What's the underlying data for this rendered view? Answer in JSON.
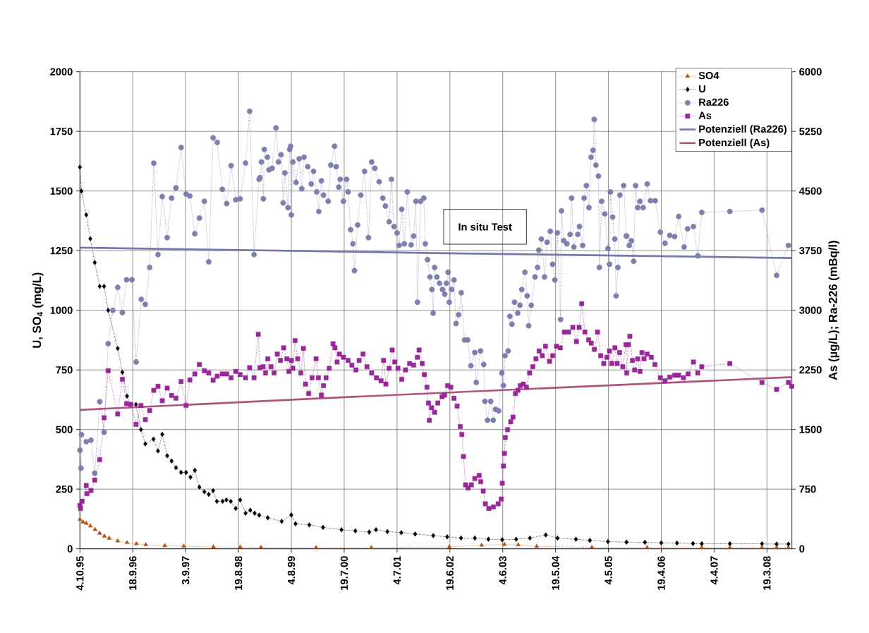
{
  "chart_data": {
    "type": "line",
    "ylabel": "U, SO$_{4}$ (mg/L)",
    "y2label": "As (µg/L); Ra-226 (mBq/l)",
    "annotations": [
      "In situ Test"
    ],
    "xlim": [
      "1995-10-04",
      "2008-08-31"
    ],
    "xticks": [
      {
        "value": "1995-10-04",
        "label": "4.10.95"
      },
      {
        "value": "1996-09-18",
        "label": "18.9.96"
      },
      {
        "value": "1997-09-03",
        "label": "3.9.97"
      },
      {
        "value": "1998-08-19",
        "label": "19.8.98"
      },
      {
        "value": "1999-08-04",
        "label": "4.8.99"
      },
      {
        "value": "2000-07-19",
        "label": "19.7.00"
      },
      {
        "value": "2001-07-04",
        "label": "4.7.01"
      },
      {
        "value": "2002-06-19",
        "label": "19.6.02"
      },
      {
        "value": "2003-06-04",
        "label": "4.6.03"
      },
      {
        "value": "2004-05-19",
        "label": "19.5.04"
      },
      {
        "value": "2005-05-04",
        "label": "4.5.05"
      },
      {
        "value": "2006-04-19",
        "label": "19.4.06"
      },
      {
        "value": "2007-04-04",
        "label": "4.4.07"
      },
      {
        "value": "2008-03-19",
        "label": "19.3.08"
      }
    ],
    "ylim": [
      0,
      2000
    ],
    "yticks": [
      0,
      250,
      500,
      750,
      1000,
      1250,
      1500,
      1750,
      2000
    ],
    "y2lim": [
      0,
      6000
    ],
    "y2ticks": [
      0,
      750,
      1500,
      2250,
      3000,
      3750,
      4500,
      5250,
      6000
    ],
    "grid": true,
    "legend": "top right",
    "series": [
      {
        "name": "SO4",
        "type": "line",
        "color": "#b5520f",
        "marker": "triangle",
        "line_style": "dotted",
        "x": [
          "1995-10-04",
          "1995-10-25",
          "1995-11-15",
          "1995-12-12",
          "1996-01-12",
          "1996-02-12",
          "1996-03-14",
          "1996-04-15",
          "1996-06-10",
          "1996-08-11",
          "1996-10-12",
          "1996-12-13",
          "1997-04-18",
          "1997-08-21",
          "1998-03-06",
          "1998-08-30",
          "1999-01-15",
          "2000-01-15",
          "2001-01-15",
          "2002-06-15",
          "2003-01-15",
          "2003-06-15",
          "2003-09-15",
          "2004-01-15",
          "2005-01-15",
          "2006-01-15",
          "2007-01-12",
          "2007-07-17",
          "2008-02-15",
          "2008-05-22",
          "2008-08-08"
        ],
        "values": [
          123,
          112,
          107,
          96,
          81,
          65,
          53,
          44,
          33,
          26,
          21,
          17,
          13,
          11,
          8,
          7,
          6,
          5,
          5,
          8,
          15,
          18,
          17,
          10,
          6,
          5,
          5,
          5,
          5,
          5,
          5
        ]
      },
      {
        "name": "U",
        "type": "line",
        "color": "#000000",
        "marker": "diamond",
        "line_style": "dotted",
        "x": [
          "1995-10-04",
          "1995-10-14",
          "1995-11-15",
          "1995-12-12",
          "1996-01-10",
          "1996-02-12",
          "1996-03-12",
          "1996-04-08",
          "1996-06-10",
          "1996-07-11",
          "1996-08-11",
          "1996-09-05",
          "1996-10-09",
          "1996-11-11",
          "1996-12-10",
          "1997-02-02",
          "1997-03-04",
          "1997-04-01",
          "1997-05-04",
          "1997-06-02",
          "1997-07-01",
          "1997-08-04",
          "1997-09-06",
          "1997-10-05",
          "1997-11-03",
          "1997-12-03",
          "1998-01-05",
          "1998-02-03",
          "1998-03-04",
          "1998-03-29",
          "1998-05-06",
          "1998-05-31",
          "1998-06-29",
          "1998-08-01",
          "1998-08-30",
          "1998-10-05",
          "1998-11-05",
          "1998-12-04",
          "1999-01-03",
          "1999-03-01",
          "1999-06-01",
          "1999-08-04",
          "1999-09-01",
          "1999-12-01",
          "2000-03-01",
          "2000-07-01",
          "2000-10-01",
          "2001-01-01",
          "2001-02-15",
          "2001-05-01",
          "2001-08-01",
          "2001-11-01",
          "2002-03-01",
          "2002-06-01",
          "2002-09-01",
          "2002-12-01",
          "2003-03-01",
          "2003-06-01",
          "2003-09-01",
          "2003-12-01",
          "2004-03-15",
          "2004-06-01",
          "2004-10-01",
          "2005-01-01",
          "2005-05-01",
          "2005-09-01",
          "2006-01-01",
          "2006-04-19",
          "2006-08-01",
          "2006-11-15",
          "2007-01-12",
          "2007-07-17",
          "2008-02-15",
          "2008-05-22",
          "2008-08-08"
        ],
        "values": [
          1600,
          1500,
          1400,
          1300,
          1200,
          1100,
          1100,
          1000,
          840,
          740,
          640,
          605,
          605,
          500,
          440,
          460,
          410,
          480,
          390,
          368,
          340,
          320,
          320,
          300,
          329,
          259,
          239,
          228,
          244,
          199,
          199,
          205,
          199,
          169,
          205,
          149,
          162,
          149,
          141,
          130,
          115,
          142,
          105,
          100,
          90,
          80,
          75,
          70,
          80,
          72,
          68,
          62,
          55,
          50,
          45,
          45,
          40,
          38,
          40,
          45,
          58,
          45,
          40,
          35,
          30,
          28,
          27,
          25,
          24,
          22,
          21,
          21,
          21,
          20,
          20
        ]
      },
      {
        "name": "Ra226",
        "type": "line",
        "axis": "y2",
        "color": "#7f7fae",
        "marker": "circle",
        "line_style": "dotted",
        "x": [
          "1995-10-04",
          "1995-10-11",
          "1995-10-14",
          "1995-11-15",
          "1995-12-16",
          "1996-01-10",
          "1996-02-12",
          "1996-03-12",
          "1996-04-08",
          "1996-05-09",
          "1996-06-10",
          "1996-07-11",
          "1996-08-08",
          "1996-09-12",
          "1996-10-10",
          "1996-11-13",
          "1996-12-10",
          "1997-01-08",
          "1997-02-04",
          "1997-03-04",
          "1997-04-01",
          "1997-05-04",
          "1997-06-02",
          "1997-07-01",
          "1997-08-04",
          "1997-09-06",
          "1997-10-01",
          "1997-11-03",
          "1997-12-03",
          "1998-01-05",
          "1998-02-03",
          "1998-03-04",
          "1998-03-31",
          "1998-05-04",
          "1998-06-02",
          "1998-07-01",
          "1998-08-01",
          "1998-08-30",
          "1998-10-05",
          "1998-11-01",
          "1998-11-30",
          "1999-01-03",
          "1999-01-08",
          "1999-01-18",
          "1999-01-31",
          "1999-02-06",
          "1999-02-27",
          "1999-03-09",
          "1999-03-30",
          "1999-04-24",
          "1999-05-11",
          "1999-05-28",
          "1999-06-11",
          "1999-06-22",
          "1999-07-13",
          "1999-07-24",
          "1999-07-30",
          "1999-08-04",
          "1999-08-14",
          "1999-09-04",
          "1999-09-25",
          "1999-10-12",
          "1999-10-27",
          "1999-11-21",
          "1999-12-14",
          "1999-12-29",
          "2000-01-19",
          "2000-02-02",
          "2000-02-19",
          "2000-03-04",
          "2000-04-04",
          "2000-04-21",
          "2000-05-16",
          "2000-05-27",
          "2000-06-13",
          "2000-06-23",
          "2000-07-14",
          "2000-08-04",
          "2000-08-14",
          "2000-08-31",
          "2000-09-15",
          "2000-09-25",
          "2000-10-16",
          "2000-11-06",
          "2000-12-01",
          "2000-12-27",
          "2001-01-17",
          "2001-02-07",
          "2001-03-08",
          "2001-04-01",
          "2001-04-18",
          "2001-05-13",
          "2001-05-28",
          "2001-06-14",
          "2001-07-04",
          "2001-07-18",
          "2001-08-04",
          "2001-08-21",
          "2001-09-10",
          "2001-10-05",
          "2001-10-22",
          "2001-11-06",
          "2001-11-16",
          "2001-12-07",
          "2001-12-28",
          "2002-01-07",
          "2002-01-22",
          "2002-02-07",
          "2002-02-20",
          "2002-02-28",
          "2002-03-10",
          "2002-03-25",
          "2002-04-11",
          "2002-05-01",
          "2002-05-16",
          "2002-05-27",
          "2002-06-07",
          "2002-06-15",
          "2002-07-01",
          "2002-07-16",
          "2002-07-30",
          "2002-08-16",
          "2002-09-02",
          "2002-09-24",
          "2002-10-15",
          "2002-11-05",
          "2002-12-01",
          "2002-12-11",
          "2003-01-08",
          "2003-01-29",
          "2003-02-06",
          "2003-02-23",
          "2003-03-16",
          "2003-04-02",
          "2003-04-17",
          "2003-05-08",
          "2003-05-29",
          "2003-06-09",
          "2003-06-19",
          "2003-07-10",
          "2003-07-21",
          "2003-08-04",
          "2003-08-21",
          "2003-09-11",
          "2003-09-26",
          "2003-10-08",
          "2003-10-29",
          "2003-11-13",
          "2003-11-23",
          "2003-12-10",
          "2004-01-04",
          "2004-01-21",
          "2004-01-29",
          "2004-02-15",
          "2004-03-07",
          "2004-03-24",
          "2004-04-14",
          "2004-04-29",
          "2004-05-14",
          "2004-05-31",
          "2004-06-21",
          "2004-06-27",
          "2004-07-12",
          "2004-08-02",
          "2004-08-23",
          "2004-09-02",
          "2004-09-17",
          "2004-10-13",
          "2004-10-24",
          "2004-11-14",
          "2004-11-24",
          "2004-12-09",
          "2004-12-26",
          "2005-01-09",
          "2005-01-22",
          "2005-01-30",
          "2005-02-10",
          "2005-02-27",
          "2005-03-05",
          "2005-03-20",
          "2005-04-10",
          "2005-05-01",
          "2005-05-11",
          "2005-05-17",
          "2005-06-01",
          "2005-06-15",
          "2005-06-24",
          "2005-07-06",
          "2005-07-19",
          "2005-08-13",
          "2005-08-30",
          "2005-09-02",
          "2005-09-19",
          "2005-10-03",
          "2005-10-18",
          "2005-10-31",
          "2005-11-14",
          "2005-11-29",
          "2005-12-20",
          "2006-01-16",
          "2006-02-06",
          "2006-03-10",
          "2006-04-13",
          "2006-05-14",
          "2006-06-14",
          "2006-07-16",
          "2006-08-12",
          "2006-09-17",
          "2006-10-10",
          "2006-11-18",
          "2006-12-17",
          "2007-01-12",
          "2007-07-17",
          "2008-02-15",
          "2008-05-22",
          "2008-08-08"
        ],
        "values": [
          1240,
          1014,
          1438,
          1347,
          1367,
          951,
          1850,
          1466,
          2579,
          2999,
          3288,
          2971,
          3384,
          3384,
          2349,
          3138,
          3074,
          3538,
          4850,
          3700,
          4430,
          3914,
          4410,
          4540,
          5048,
          4461,
          4437,
          3962,
          4160,
          4370,
          3609,
          5170,
          5111,
          4521,
          4342,
          4818,
          4390,
          4402,
          4853,
          5503,
          3700,
          4647,
          4667,
          4865,
          4402,
          5024,
          4925,
          4766,
          4786,
          5293,
          4865,
          4957,
          4350,
          4727,
          4291,
          5024,
          5063,
          4200,
          4865,
          4608,
          4905,
          4529,
          4925,
          4806,
          4588,
          4747,
          4489,
          4243,
          4628,
          4449,
          4370,
          4826,
          5063,
          4806,
          4548,
          4647,
          4370,
          4647,
          4489,
          4013,
          3835,
          3498,
          4073,
          4449,
          4747,
          3914,
          4865,
          4786,
          4616,
          4410,
          4311,
          4113,
          4647,
          4053,
          3974,
          3815,
          4271,
          3835,
          4489,
          3823,
          3934,
          4370,
          3102,
          4370,
          4410,
          3835,
          3637,
          3419,
          3261,
          2964,
          3538,
          3419,
          3340,
          3261,
          3201,
          3340,
          3479,
          3102,
          3261,
          3380,
          2833,
          2944,
          3221,
          2627,
          2627,
          2302,
          2468,
          2092,
          2488,
          2318,
          1854,
          1617,
          1854,
          1617,
          1755,
          1735,
          2211,
          2053,
          2429,
          2488,
          2924,
          2825,
          3102,
          2964,
          3063,
          3261,
          3479,
          3182,
          2805,
          3063,
          3419,
          3538,
          3756,
          3895,
          3419,
          3855,
          3994,
          3578,
          3380,
          3974,
          2884,
          4251,
          3875,
          3835,
          3954,
          4410,
          3796,
          3954,
          4053,
          3815,
          4410,
          4568,
          4291,
          4925,
          5012,
          5400,
          4826,
          4687,
          3538,
          4370,
          4212,
          3776,
          3578,
          4489,
          4172,
          3895,
          3182,
          3538,
          4449,
          4568,
          3934,
          3934,
          3815,
          3875,
          3617,
          4568,
          4291,
          4370,
          4291,
          4588,
          4378,
          4378,
          3982,
          3843,
          3942,
          3926,
          4180,
          3796,
          4025,
          4053,
          3685,
          4231,
          4243,
          4259,
          3439,
          3815
        ]
      },
      {
        "name": "As",
        "type": "line",
        "axis": "y2",
        "color": "#982898",
        "marker": "square",
        "line_style": "dotted",
        "x": [
          "1995-10-04",
          "1995-10-08",
          "1995-10-18",
          "1995-11-15",
          "1995-11-19",
          "1995-12-16",
          "1996-01-10",
          "1996-02-12",
          "1996-03-12",
          "1996-04-08",
          "1996-06-10",
          "1996-07-11",
          "1996-08-08",
          "1996-09-05",
          "1996-10-10",
          "1996-11-11",
          "1996-12-10",
          "1997-01-08",
          "1997-02-04",
          "1997-03-04",
          "1997-04-01",
          "1997-05-04",
          "1997-06-02",
          "1997-07-01",
          "1997-08-04",
          "1997-09-06",
          "1997-10-01",
          "1997-11-03",
          "1997-12-03",
          "1998-01-05",
          "1998-02-03",
          "1998-03-04",
          "1998-03-31",
          "1998-05-04",
          "1998-06-02",
          "1998-07-01",
          "1998-08-01",
          "1998-08-30",
          "1998-10-05",
          "1998-11-01",
          "1998-11-30",
          "1998-12-28",
          "1999-01-08",
          "1999-01-29",
          "1999-02-14",
          "1999-03-01",
          "1999-03-22",
          "1999-04-12",
          "1999-05-03",
          "1999-05-24",
          "1999-06-14",
          "1999-07-05",
          "1999-07-19",
          "1999-08-04",
          "1999-08-14",
          "1999-08-29",
          "1999-09-15",
          "1999-10-06",
          "1999-10-23",
          "1999-11-06",
          "1999-11-27",
          "1999-12-19",
          "2000-01-15",
          "2000-01-30",
          "2000-02-19",
          "2000-03-04",
          "2000-03-21",
          "2000-04-11",
          "2000-05-06",
          "2000-05-19",
          "2000-06-02",
          "2000-06-17",
          "2000-07-14",
          "2000-08-14",
          "2000-09-08",
          "2000-10-05",
          "2000-10-26",
          "2000-11-21",
          "2000-12-17",
          "2001-01-17",
          "2001-02-18",
          "2001-03-20",
          "2001-04-06",
          "2001-04-21",
          "2001-05-13",
          "2001-06-02",
          "2001-06-19",
          "2001-07-10",
          "2001-08-04",
          "2001-08-29",
          "2001-09-25",
          "2001-10-22",
          "2001-11-16",
          "2001-11-27",
          "2001-12-18",
          "2002-01-01",
          "2002-01-18",
          "2002-01-28",
          "2002-02-03",
          "2002-02-18",
          "2002-03-10",
          "2002-03-31",
          "2002-04-28",
          "2002-05-15",
          "2002-06-04",
          "2002-06-25",
          "2002-07-16",
          "2002-08-06",
          "2002-08-27",
          "2002-09-06",
          "2002-09-17",
          "2002-10-01",
          "2002-10-18",
          "2002-11-08",
          "2002-12-01",
          "2002-12-30",
          "2003-01-09",
          "2003-01-26",
          "2003-02-09",
          "2003-03-04",
          "2003-04-03",
          "2003-05-05",
          "2003-05-25",
          "2003-06-01",
          "2003-06-09",
          "2003-06-15",
          "2003-06-21",
          "2003-07-06",
          "2003-07-27",
          "2003-08-11",
          "2003-08-27",
          "2003-09-13",
          "2003-09-28",
          "2003-10-18",
          "2003-11-08",
          "2003-11-29",
          "2003-12-20",
          "2004-01-10",
          "2004-01-31",
          "2004-02-21",
          "2004-03-13",
          "2004-04-09",
          "2004-04-30",
          "2004-05-25",
          "2004-06-19",
          "2004-07-16",
          "2004-08-13",
          "2004-09-10",
          "2004-10-04",
          "2004-10-22",
          "2004-11-08",
          "2004-11-29",
          "2004-12-24",
          "2005-01-10",
          "2005-01-31",
          "2005-02-21",
          "2005-03-14",
          "2005-04-03",
          "2005-04-24",
          "2005-05-11",
          "2005-05-26",
          "2005-06-16",
          "2005-07-01",
          "2005-07-17",
          "2005-08-07",
          "2005-08-28",
          "2005-09-02",
          "2005-09-13",
          "2005-09-23",
          "2005-10-10",
          "2005-10-25",
          "2005-11-14",
          "2005-11-29",
          "2005-12-12",
          "2005-12-26",
          "2006-01-16",
          "2006-02-12",
          "2006-03-08",
          "2006-04-13",
          "2006-05-14",
          "2006-06-14",
          "2006-07-16",
          "2006-08-12",
          "2006-09-13",
          "2006-10-14",
          "2006-11-18",
          "2006-12-17",
          "2007-01-12",
          "2007-07-17",
          "2008-02-15",
          "2008-05-22",
          "2008-08-08",
          "2008-08-30"
        ],
        "values": [
          547,
          507,
          598,
          796,
          693,
          733,
          864,
          1121,
          1648,
          2239,
          1696,
          2132,
          1826,
          1815,
          1565,
          1803,
          1624,
          1739,
          1993,
          2044,
          1862,
          2021,
          1929,
          1894,
          2104,
          1803,
          2124,
          2199,
          2318,
          2239,
          2211,
          2120,
          2171,
          2199,
          2199,
          2151,
          2231,
          2191,
          2151,
          2278,
          2151,
          2698,
          2278,
          2290,
          2211,
          2389,
          2290,
          2211,
          2449,
          2369,
          2528,
          2389,
          2231,
          2369,
          2270,
          2619,
          2389,
          2211,
          2520,
          2072,
          1953,
          2151,
          2389,
          2151,
          1933,
          2052,
          2151,
          2270,
          2579,
          2528,
          2349,
          2449,
          2409,
          2369,
          2310,
          2250,
          2369,
          2449,
          2290,
          2211,
          2151,
          2112,
          2369,
          2072,
          2270,
          2500,
          2349,
          2270,
          2132,
          2250,
          2330,
          2310,
          2409,
          2500,
          2330,
          2191,
          2033,
          1834,
          1617,
          1775,
          1716,
          1834,
          1914,
          1933,
          2052,
          2033,
          1894,
          1795,
          1537,
          1438,
          1161,
          804,
          765,
          804,
          884,
          923,
          844,
          725,
          566,
          507,
          527,
          566,
          626,
          824,
          1042,
          1200,
          1399,
          1498,
          1597,
          1656,
          1953,
          1993,
          2052,
          2072,
          2033,
          2211,
          2290,
          2389,
          2488,
          2429,
          2548,
          2357,
          2429,
          2548,
          2528,
          2726,
          2726,
          2785,
          2607,
          2785,
          3082,
          2726,
          2627,
          2587,
          2508,
          2726,
          2429,
          2330,
          2409,
          2488,
          2330,
          2528,
          2330,
          2468,
          2290,
          2567,
          2211,
          2567,
          2674,
          2369,
          2250,
          2389,
          2231,
          2468,
          2389,
          2449,
          2409,
          2318,
          2151,
          2112,
          2159,
          2183,
          2183,
          2151,
          2199,
          2349,
          2211,
          2290,
          2330,
          2092,
          2005,
          2092,
          2044
        ]
      },
      {
        "name": "Potenziell (Ra226)",
        "type": "line",
        "axis": "y2",
        "color": "#7479ad",
        "marker": "none",
        "line_style": "solid",
        "x": [
          "1995-10-04",
          "2002-03-01",
          "2008-08-31"
        ],
        "values": [
          3788,
          3720,
          3657
        ]
      },
      {
        "name": "Potenziell (As)",
        "type": "line",
        "axis": "y2",
        "color": "#b0537e",
        "marker": "none",
        "line_style": "solid",
        "x": [
          "1995-10-04",
          "2000-07-19",
          "2008-08-31"
        ],
        "values": [
          1747,
          1906,
          2159
        ]
      }
    ]
  }
}
